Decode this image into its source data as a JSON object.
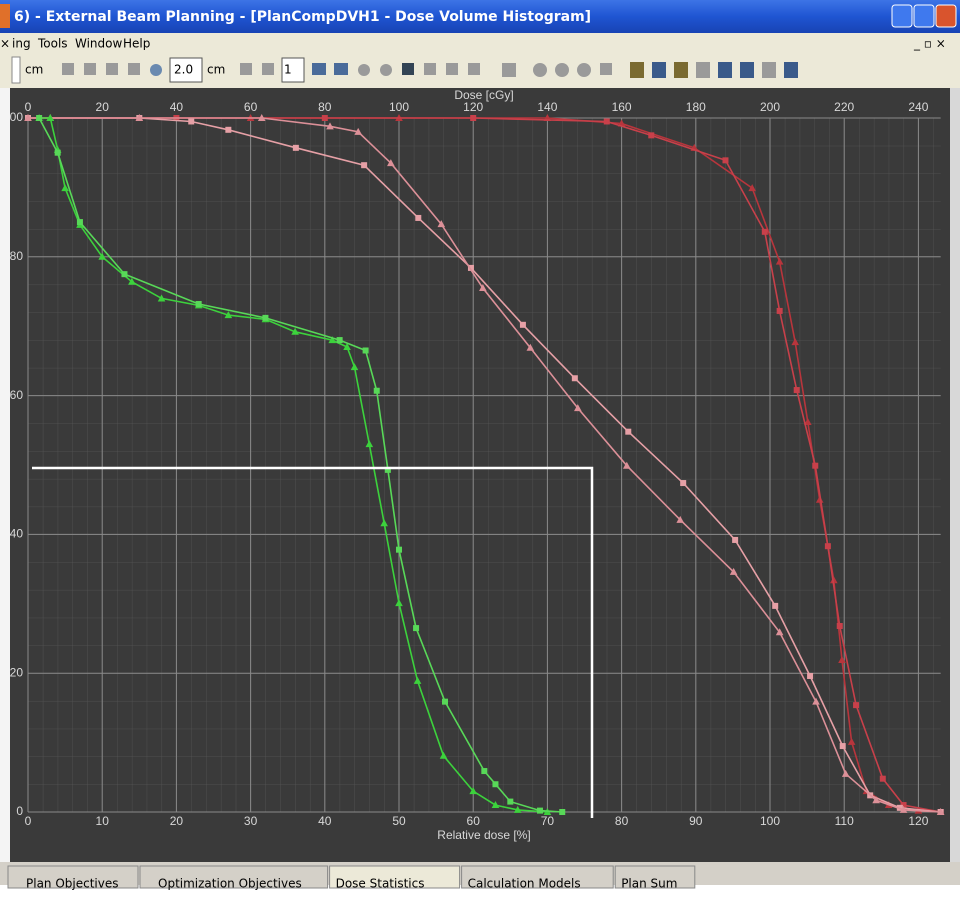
{
  "window": {
    "title": "6) - External Beam Planning - [PlanCompDVH1 - Dose Volume Histogram]"
  },
  "menu": [
    "ing",
    "Tools",
    "Window",
    "Help"
  ],
  "toolbar": {
    "unit_1": "cm",
    "zoom": "2.0",
    "unit_2": "cm",
    "count": "1"
  },
  "chart_data": {
    "type": "line",
    "xlabel": "Relative dose [%]",
    "x2label": "Dose [cGy]",
    "xlim": [
      0,
      123
    ],
    "xticks": [
      0,
      10,
      20,
      30,
      40,
      50,
      60,
      70,
      80,
      90,
      100,
      110,
      120
    ],
    "x2lim": [
      0,
      246
    ],
    "x2ticks": [
      0,
      20,
      40,
      60,
      80,
      100,
      120,
      140,
      160,
      180,
      200,
      220,
      240
    ],
    "ylim": [
      0,
      100
    ],
    "yticks": [
      {
        "value": 100,
        "label": "00"
      },
      80,
      60,
      40,
      20,
      0
    ],
    "grid": true,
    "series": [
      {
        "color": "#b8353c",
        "marker": "triangle",
        "x": [
          0,
          15,
          30,
          50,
          70,
          80,
          89.8,
          97.6,
          101.3,
          103.4,
          105.1,
          106.7,
          108.6,
          109.7,
          111,
          113,
          116,
          120,
          123
        ],
        "values": [
          100,
          100,
          100,
          100,
          100,
          99.2,
          95.7,
          89.9,
          79.3,
          67.7,
          56.2,
          45,
          33.4,
          21.9,
          10.1,
          3,
          1,
          0.2,
          0
        ]
      },
      {
        "color": "#c8404a",
        "marker": "square",
        "x": [
          0,
          20,
          40,
          60,
          78,
          84,
          94,
          99.3,
          101.3,
          103.6,
          106.1,
          107.8,
          109.4,
          111.6,
          115.2,
          118,
          123
        ],
        "values": [
          100,
          100,
          100,
          100,
          99.5,
          97.5,
          93.9,
          83.6,
          72.2,
          60.8,
          49.9,
          38.3,
          26.8,
          15.4,
          4.8,
          1,
          0
        ]
      },
      {
        "color": "#e6a0a6",
        "marker": "square",
        "x": [
          0,
          15,
          22,
          27,
          36.1,
          45.3,
          52.6,
          59.7,
          66.7,
          73.7,
          80.9,
          88.3,
          95.3,
          100.7,
          105.4,
          109.8,
          113.5,
          117.5,
          123
        ],
        "values": [
          100,
          100,
          99.5,
          98.3,
          95.7,
          93.2,
          85.6,
          78.4,
          70.2,
          62.5,
          54.8,
          47.4,
          39.2,
          29.7,
          19.6,
          9.5,
          2.4,
          0.6,
          0
        ]
      },
      {
        "color": "#dc9098",
        "marker": "triangle",
        "x": [
          0,
          3,
          15,
          31.5,
          40.7,
          44.5,
          48.9,
          55.7,
          61.3,
          67.7,
          74.1,
          80.7,
          87.9,
          95.1,
          101.3,
          106.2,
          110.2,
          114.3,
          118,
          123
        ],
        "values": [
          100,
          100,
          100,
          100,
          98.8,
          98,
          93.5,
          84.7,
          75.5,
          66.9,
          58.2,
          49.9,
          42.1,
          34.6,
          25.9,
          15.9,
          5.5,
          1.7,
          0.3,
          0
        ]
      },
      {
        "color": "#3cd23c",
        "marker": "triangle",
        "x": [
          1.5,
          3,
          4,
          5,
          7,
          10,
          14,
          18,
          23,
          27,
          32,
          36,
          41,
          43,
          44,
          46,
          48,
          50,
          52.5,
          56,
          60,
          63,
          66,
          70
        ],
        "values": [
          100,
          100,
          95.4,
          89.9,
          84.6,
          80,
          76.4,
          74,
          73,
          71.6,
          71,
          69.2,
          68,
          67,
          64.1,
          53,
          41.6,
          30.1,
          18.9,
          8.1,
          3,
          1,
          0.3,
          0
        ]
      },
      {
        "color": "#58d858",
        "marker": "square",
        "x": [
          1.5,
          4,
          7,
          13,
          23,
          32,
          42,
          45.5,
          47,
          48.5,
          50,
          52.3,
          56.2,
          61.5,
          63,
          65,
          69,
          72
        ],
        "values": [
          100,
          95,
          85,
          77.5,
          73.2,
          71.2,
          68,
          66.5,
          60.7,
          49.3,
          37.8,
          26.5,
          15.9,
          5.9,
          4,
          1.5,
          0.2,
          0
        ]
      }
    ]
  },
  "tabs": [
    "Plan Objectives",
    "Optimization Objectives",
    "Dose Statistics",
    "Calculation Models",
    "Plan Sum"
  ]
}
